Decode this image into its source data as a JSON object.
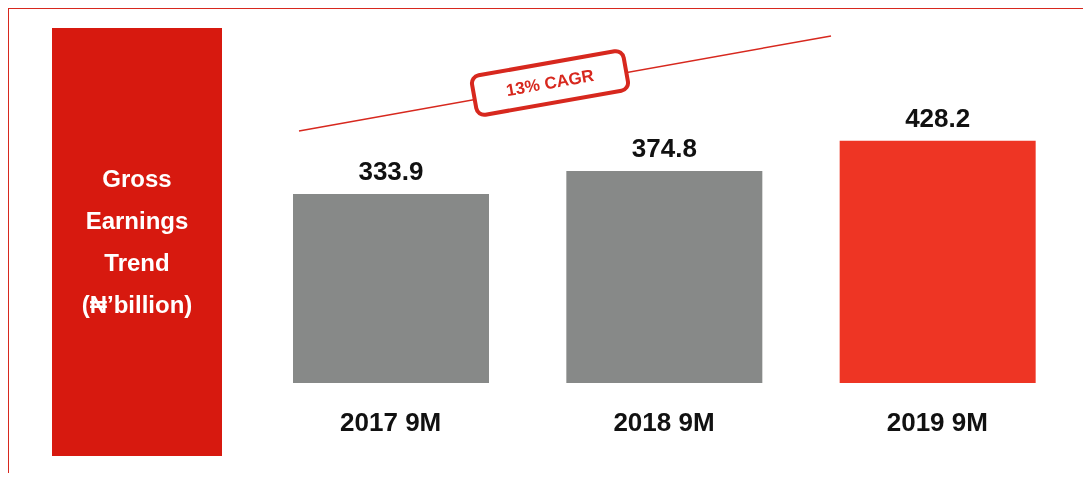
{
  "chart_data": {
    "type": "bar",
    "title": "Gross Earnings Trend (₦’billion)",
    "categories": [
      "2017 9M",
      "2018 9M",
      "2019 9M"
    ],
    "values": [
      333.9,
      374.8,
      428.2
    ],
    "colors": [
      "#878988",
      "#878988",
      "#ee3524"
    ],
    "data_labels": true,
    "annotations": [
      "13% CAGR"
    ]
  }
}
